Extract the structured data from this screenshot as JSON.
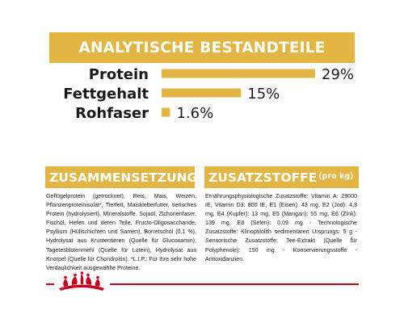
{
  "header": {
    "title": "ANALYTISCHE BESTANDTEILE"
  },
  "chart_data": {
    "type": "bar",
    "orientation": "horizontal",
    "title": "ANALYTISCHE BESTANDTEILE",
    "categories": [
      "Protein",
      "Fettgehalt",
      "Rohfaser"
    ],
    "values": [
      29,
      15,
      1.6
    ],
    "value_labels": [
      "29%",
      "15%",
      "1.6%"
    ],
    "unit": "%",
    "xlim": [
      0,
      29
    ],
    "grid": false,
    "legend": "none",
    "bar_color": "#e3b644"
  },
  "composition": {
    "title": "ZUSAMMENSETZUNG",
    "text": "Geflügelprotein (getrocknet), Reis, Mais, Weizen, Pflanzenproteinisolat*, Tierfett, Maiskleberfutter, tierisches Protein (hydrolysiert), Mineralstoffe, Sojaöl, Zichorienfaser, Fischöl, Hefen und deren Teile, Fructo-Oligosaccharide, Psyllium (Hüllschichten und Samen), Borretschöl (0,1 %), Hydrolysat aus Krustentieren (Quelle für Glucosamin), Tagetesblütenmehl (Quelle für Lutein), Hydrolysat aus Knorpel (Quelle für Chondroitin). *L.I.P.: Für ihre sehr hohe Verdaulichkeit ausgewählte Proteine."
  },
  "additives": {
    "title": "ZUSATZSTOFFE",
    "title_suffix": "(pro kg)",
    "text": "Ernährungsphysiologische Zusatzstoffe: Vitamin A: 29000 IE, Vitamin D3: 800 IE, E1 (Eisen): 43 mg, E2 (Jod): 4,3 mg, E4 (Kupfer): 13 mg, E5 (Mangan): 55 mg, E6 (Zink): 139 mg, E8 (Selen): 0,09 mg - Technologische Zusatzstoffe: Klinoptilolith sedimentären Ursprungs: 5 g - Sensorische Zusatzstoffe: Tee-Extrakt (Quelle für Polyphenole): 150 mg - Konservierungsstoffe - Antioxidanzien."
  },
  "colors": {
    "accent": "#e3b644",
    "brand_red": "#c4001d",
    "text": "#222222"
  },
  "logo": {
    "icon": "royal-canin-crown-icon"
  }
}
